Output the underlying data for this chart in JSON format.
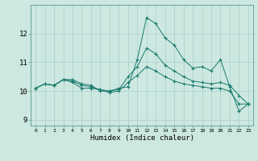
{
  "title": "",
  "xlabel": "Humidex (Indice chaleur)",
  "ylabel": "",
  "background_color": "#cce8e0",
  "line_color": "#1a7a6e",
  "grid_color": "#aacfc8",
  "x": [
    0,
    1,
    2,
    3,
    4,
    5,
    6,
    7,
    8,
    9,
    10,
    11,
    12,
    13,
    14,
    15,
    16,
    17,
    18,
    19,
    20,
    21,
    22,
    23
  ],
  "series1": [
    10.1,
    10.25,
    10.2,
    10.4,
    10.4,
    10.25,
    10.2,
    10.0,
    10.0,
    10.1,
    10.15,
    11.1,
    12.55,
    12.35,
    11.85,
    11.6,
    11.1,
    10.8,
    10.85,
    10.7,
    11.1,
    10.15,
    9.3,
    9.55
  ],
  "series2": [
    10.1,
    10.25,
    10.2,
    10.4,
    10.35,
    10.2,
    10.15,
    10.05,
    10.0,
    10.05,
    10.5,
    10.85,
    11.5,
    11.3,
    10.9,
    10.7,
    10.5,
    10.35,
    10.3,
    10.25,
    10.3,
    10.2,
    9.85,
    9.55
  ],
  "series3": [
    10.1,
    10.25,
    10.2,
    10.4,
    10.3,
    10.1,
    10.1,
    10.05,
    9.95,
    10.0,
    10.3,
    10.55,
    10.85,
    10.7,
    10.5,
    10.35,
    10.25,
    10.2,
    10.15,
    10.1,
    10.1,
    10.0,
    9.55,
    9.55
  ],
  "ylim": [
    8.8,
    13.0
  ],
  "yticks": [
    9,
    10,
    11,
    12
  ],
  "xlim": [
    -0.5,
    23.5
  ],
  "figsize": [
    3.2,
    2.0
  ],
  "dpi": 100
}
